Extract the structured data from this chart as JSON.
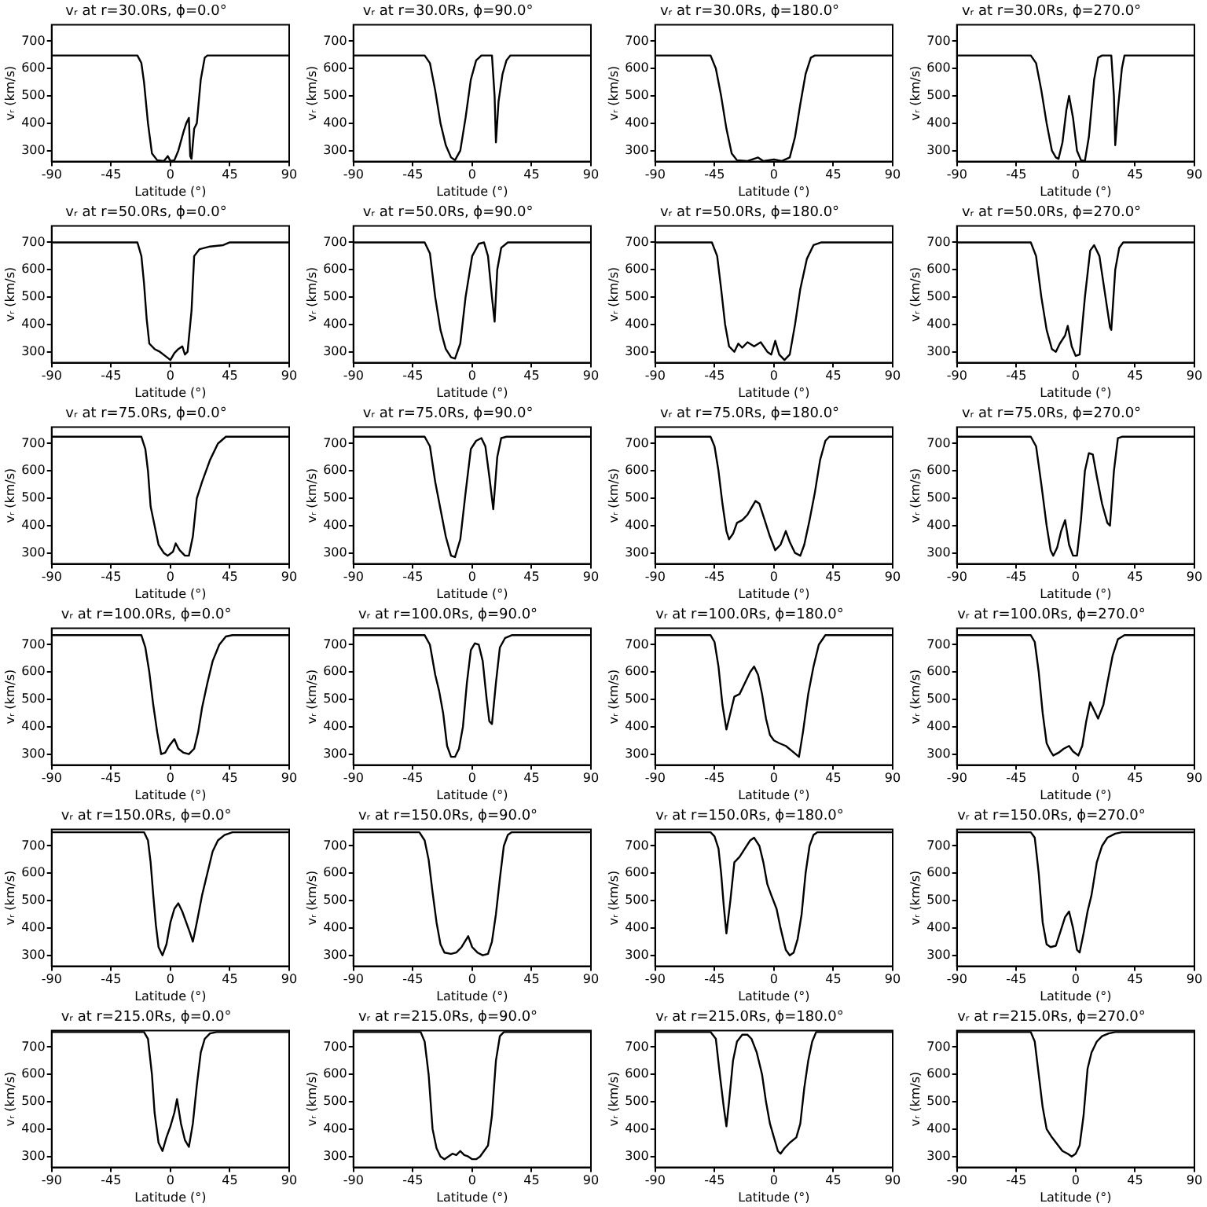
{
  "chart_data": [
    {
      "type": "line",
      "title": "vᵣ at r=30.0Rs, ϕ=0.0°",
      "xlabel": "Latitude (°)",
      "ylabel": "vᵣ (km/s)",
      "xlim": [
        -90,
        90
      ],
      "xticks": [
        -90,
        -45,
        0,
        45,
        90
      ],
      "ylim": [
        260,
        760
      ],
      "yticks": [
        300,
        400,
        500,
        600,
        700
      ],
      "grid": false,
      "marker": "none",
      "line_style": "solid",
      "series": [
        {
          "color": "#000000",
          "x": [
            -90,
            -25,
            -22,
            -20,
            -17,
            -14,
            -10,
            -5,
            -2,
            0,
            3,
            6,
            10,
            12,
            14,
            15,
            16,
            18,
            20,
            23,
            26,
            28,
            90
          ],
          "values": [
            648,
            648,
            620,
            550,
            400,
            290,
            265,
            262,
            280,
            262,
            265,
            300,
            370,
            400,
            420,
            280,
            270,
            380,
            400,
            560,
            640,
            648,
            648
          ]
        }
      ]
    },
    {
      "type": "line",
      "title": "vᵣ at r=30.0Rs, ϕ=90.0°",
      "xlabel": "Latitude (°)",
      "ylabel": "vᵣ (km/s)",
      "xlim": [
        -90,
        90
      ],
      "xticks": [
        -90,
        -45,
        0,
        45,
        90
      ],
      "ylim": [
        260,
        760
      ],
      "yticks": [
        300,
        400,
        500,
        600,
        700
      ],
      "grid": false,
      "marker": "none",
      "line_style": "solid",
      "series": [
        {
          "color": "#000000",
          "x": [
            -90,
            -36,
            -32,
            -28,
            -24,
            -20,
            -16,
            -13,
            -9,
            -5,
            -1,
            3,
            7,
            15,
            17,
            18,
            20,
            23,
            26,
            29,
            90
          ],
          "values": [
            648,
            648,
            620,
            520,
            400,
            320,
            275,
            265,
            300,
            420,
            560,
            630,
            648,
            648,
            500,
            330,
            480,
            580,
            630,
            648,
            648
          ]
        }
      ]
    },
    {
      "type": "line",
      "title": "vᵣ at r=30.0Rs, ϕ=180.0°",
      "xlabel": "Latitude (°)",
      "ylabel": "vᵣ (km/s)",
      "xlim": [
        -90,
        90
      ],
      "xticks": [
        -90,
        -45,
        0,
        45,
        90
      ],
      "ylim": [
        260,
        760
      ],
      "yticks": [
        300,
        400,
        500,
        600,
        700
      ],
      "grid": false,
      "marker": "none",
      "line_style": "solid",
      "series": [
        {
          "color": "#000000",
          "x": [
            -90,
            -48,
            -44,
            -40,
            -36,
            -32,
            -28,
            -20,
            -12,
            -8,
            0,
            6,
            12,
            16,
            20,
            24,
            28,
            31,
            90
          ],
          "values": [
            648,
            648,
            600,
            500,
            380,
            290,
            265,
            262,
            275,
            262,
            268,
            262,
            275,
            350,
            470,
            580,
            640,
            648,
            648
          ]
        }
      ]
    },
    {
      "type": "line",
      "title": "vᵣ at r=30.0Rs, ϕ=270.0°",
      "xlabel": "Latitude (°)",
      "ylabel": "vᵣ (km/s)",
      "xlim": [
        -90,
        90
      ],
      "xticks": [
        -90,
        -45,
        0,
        45,
        90
      ],
      "ylim": [
        260,
        760
      ],
      "yticks": [
        300,
        400,
        500,
        600,
        700
      ],
      "grid": false,
      "marker": "none",
      "line_style": "solid",
      "series": [
        {
          "color": "#000000",
          "x": [
            -90,
            -34,
            -30,
            -26,
            -22,
            -18,
            -15,
            -13,
            -10,
            -7,
            -5,
            -2,
            1,
            4,
            7,
            10,
            14,
            17,
            20,
            27,
            29,
            30,
            32,
            35,
            37,
            90
          ],
          "values": [
            648,
            648,
            620,
            520,
            400,
            300,
            275,
            270,
            330,
            450,
            500,
            420,
            300,
            265,
            262,
            350,
            560,
            640,
            648,
            648,
            500,
            320,
            450,
            600,
            648,
            648
          ]
        }
      ]
    },
    {
      "type": "line",
      "title": "vᵣ at r=50.0Rs, ϕ=0.0°",
      "xlabel": "Latitude (°)",
      "ylabel": "vᵣ (km/s)",
      "xlim": [
        -90,
        90
      ],
      "xticks": [
        -90,
        -45,
        0,
        45,
        90
      ],
      "ylim": [
        260,
        760
      ],
      "yticks": [
        300,
        400,
        500,
        600,
        700
      ],
      "grid": false,
      "marker": "none",
      "line_style": "solid",
      "series": [
        {
          "color": "#000000",
          "x": [
            -90,
            -25,
            -22,
            -20,
            -18,
            -16,
            -12,
            -8,
            -4,
            0,
            3,
            6,
            9,
            11,
            13,
            16,
            18,
            22,
            30,
            40,
            45,
            90
          ],
          "values": [
            700,
            700,
            650,
            550,
            420,
            330,
            310,
            300,
            285,
            270,
            295,
            310,
            320,
            290,
            300,
            450,
            650,
            675,
            685,
            690,
            700,
            700
          ]
        }
      ]
    },
    {
      "type": "line",
      "title": "vᵣ at r=50.0Rs, ϕ=90.0°",
      "xlabel": "Latitude (°)",
      "ylabel": "vᵣ (km/s)",
      "xlim": [
        -90,
        90
      ],
      "xticks": [
        -90,
        -45,
        0,
        45,
        90
      ],
      "ylim": [
        260,
        760
      ],
      "yticks": [
        300,
        400,
        500,
        600,
        700
      ],
      "grid": false,
      "marker": "none",
      "line_style": "solid",
      "series": [
        {
          "color": "#000000",
          "x": [
            -90,
            -36,
            -32,
            -28,
            -24,
            -20,
            -16,
            -13,
            -9,
            -5,
            0,
            5,
            9,
            12,
            15,
            17,
            19,
            22,
            27,
            90
          ],
          "values": [
            700,
            700,
            660,
            500,
            380,
            310,
            280,
            275,
            330,
            500,
            650,
            695,
            700,
            650,
            500,
            410,
            600,
            680,
            700,
            700
          ]
        }
      ]
    },
    {
      "type": "line",
      "title": "vᵣ at r=50.0Rs, ϕ=180.0°",
      "xlabel": "Latitude (°)",
      "ylabel": "vᵣ (km/s)",
      "xlim": [
        -90,
        90
      ],
      "xticks": [
        -90,
        -45,
        0,
        45,
        90
      ],
      "ylim": [
        260,
        760
      ],
      "yticks": [
        300,
        400,
        500,
        600,
        700
      ],
      "grid": false,
      "marker": "none",
      "line_style": "solid",
      "series": [
        {
          "color": "#000000",
          "x": [
            -90,
            -47,
            -43,
            -40,
            -37,
            -34,
            -30,
            -27,
            -24,
            -20,
            -15,
            -10,
            -5,
            -2,
            1,
            4,
            8,
            12,
            16,
            20,
            25,
            30,
            36,
            90
          ],
          "values": [
            700,
            700,
            650,
            530,
            400,
            320,
            300,
            330,
            315,
            335,
            320,
            335,
            300,
            290,
            340,
            290,
            270,
            290,
            400,
            530,
            640,
            690,
            700,
            700
          ]
        }
      ]
    },
    {
      "type": "line",
      "title": "vᵣ at r=50.0Rs, ϕ=270.0°",
      "xlabel": "Latitude (°)",
      "ylabel": "vᵣ (km/s)",
      "xlim": [
        -90,
        90
      ],
      "xticks": [
        -90,
        -45,
        0,
        45,
        90
      ],
      "ylim": [
        260,
        760
      ],
      "yticks": [
        300,
        400,
        500,
        600,
        700
      ],
      "grid": false,
      "marker": "none",
      "line_style": "solid",
      "series": [
        {
          "color": "#000000",
          "x": [
            -90,
            -34,
            -30,
            -26,
            -22,
            -18,
            -15,
            -12,
            -8,
            -6,
            -3,
            0,
            3,
            7,
            11,
            14,
            18,
            22,
            26,
            27,
            30,
            33,
            36,
            90
          ],
          "values": [
            700,
            700,
            650,
            500,
            380,
            310,
            300,
            330,
            360,
            395,
            320,
            285,
            290,
            500,
            670,
            690,
            650,
            520,
            390,
            380,
            600,
            680,
            700,
            700
          ]
        }
      ]
    },
    {
      "type": "line",
      "title": "vᵣ at r=75.0Rs, ϕ=0.0°",
      "xlabel": "Latitude (°)",
      "ylabel": "vᵣ (km/s)",
      "xlim": [
        -90,
        90
      ],
      "xticks": [
        -90,
        -45,
        0,
        45,
        90
      ],
      "ylim": [
        260,
        760
      ],
      "yticks": [
        300,
        400,
        500,
        600,
        700
      ],
      "grid": false,
      "marker": "none",
      "line_style": "solid",
      "series": [
        {
          "color": "#000000",
          "x": [
            -90,
            -22,
            -19,
            -17,
            -15,
            -12,
            -9,
            -5,
            -2,
            2,
            4,
            7,
            11,
            14,
            17,
            20,
            24,
            30,
            36,
            42,
            90
          ],
          "values": [
            725,
            725,
            680,
            600,
            470,
            400,
            330,
            300,
            290,
            305,
            335,
            310,
            290,
            290,
            360,
            500,
            560,
            640,
            700,
            725,
            725
          ]
        }
      ]
    },
    {
      "type": "line",
      "title": "vᵣ at r=75.0Rs, ϕ=90.0°",
      "xlabel": "Latitude (°)",
      "ylabel": "vᵣ (km/s)",
      "xlim": [
        -90,
        90
      ],
      "xticks": [
        -90,
        -45,
        0,
        45,
        90
      ],
      "ylim": [
        260,
        760
      ],
      "yticks": [
        300,
        400,
        500,
        600,
        700
      ],
      "grid": false,
      "marker": "none",
      "line_style": "solid",
      "series": [
        {
          "color": "#000000",
          "x": [
            -90,
            -36,
            -32,
            -28,
            -24,
            -20,
            -16,
            -13,
            -9,
            -5,
            -1,
            3,
            7,
            10,
            13,
            16,
            19,
            22,
            26,
            90
          ],
          "values": [
            725,
            725,
            690,
            560,
            460,
            360,
            290,
            285,
            350,
            520,
            680,
            710,
            720,
            690,
            580,
            460,
            650,
            720,
            725,
            725
          ]
        }
      ]
    },
    {
      "type": "line",
      "title": "vᵣ at r=75.0Rs, ϕ=180.0°",
      "xlabel": "Latitude (°)",
      "ylabel": "vᵣ (km/s)",
      "xlim": [
        -90,
        90
      ],
      "xticks": [
        -90,
        -45,
        0,
        45,
        90
      ],
      "ylim": [
        260,
        760
      ],
      "yticks": [
        300,
        400,
        500,
        600,
        700
      ],
      "grid": false,
      "marker": "none",
      "line_style": "solid",
      "series": [
        {
          "color": "#000000",
          "x": [
            -90,
            -48,
            -45,
            -42,
            -39,
            -36,
            -34,
            -31,
            -28,
            -24,
            -20,
            -14,
            -11,
            -7,
            -3,
            1,
            5,
            9,
            12,
            16,
            20,
            23,
            27,
            31,
            35,
            39,
            42,
            90
          ],
          "values": [
            725,
            725,
            690,
            600,
            480,
            380,
            350,
            370,
            410,
            420,
            440,
            490,
            480,
            420,
            360,
            310,
            330,
            380,
            340,
            300,
            290,
            330,
            420,
            520,
            640,
            710,
            725,
            725
          ]
        }
      ]
    },
    {
      "type": "line",
      "title": "vᵣ at r=75.0Rs, ϕ=270.0°",
      "xlabel": "Latitude (°)",
      "ylabel": "vᵣ (km/s)",
      "xlim": [
        -90,
        90
      ],
      "xticks": [
        -90,
        -45,
        0,
        45,
        90
      ],
      "ylim": [
        260,
        760
      ],
      "yticks": [
        300,
        400,
        500,
        600,
        700
      ],
      "grid": false,
      "marker": "none",
      "line_style": "solid",
      "series": [
        {
          "color": "#000000",
          "x": [
            -90,
            -34,
            -30,
            -26,
            -22,
            -19,
            -17,
            -14,
            -11,
            -8,
            -5,
            -2,
            1,
            4,
            7,
            10,
            13,
            16,
            20,
            24,
            26,
            29,
            32,
            35,
            90
          ],
          "values": [
            725,
            725,
            690,
            550,
            400,
            310,
            290,
            320,
            380,
            420,
            330,
            290,
            290,
            420,
            600,
            665,
            660,
            580,
            480,
            410,
            400,
            600,
            720,
            725,
            725
          ]
        }
      ]
    },
    {
      "type": "line",
      "title": "vᵣ at r=100.0Rs, ϕ=0.0°",
      "xlabel": "Latitude (°)",
      "ylabel": "vᵣ (km/s)",
      "xlim": [
        -90,
        90
      ],
      "xticks": [
        -90,
        -45,
        0,
        45,
        90
      ],
      "ylim": [
        260,
        760
      ],
      "yticks": [
        300,
        400,
        500,
        600,
        700
      ],
      "grid": false,
      "marker": "none",
      "line_style": "solid",
      "series": [
        {
          "color": "#000000",
          "x": [
            -90,
            -22,
            -19,
            -16,
            -13,
            -10,
            -7,
            -4,
            -1,
            3,
            6,
            10,
            14,
            18,
            21,
            24,
            28,
            32,
            37,
            42,
            47,
            90
          ],
          "values": [
            735,
            735,
            690,
            600,
            480,
            380,
            300,
            305,
            330,
            355,
            320,
            305,
            300,
            320,
            380,
            470,
            560,
            640,
            700,
            730,
            735,
            735
          ]
        }
      ]
    },
    {
      "type": "line",
      "title": "vᵣ at r=100.0Rs, ϕ=90.0°",
      "xlabel": "Latitude (°)",
      "ylabel": "vᵣ (km/s)",
      "xlim": [
        -90,
        90
      ],
      "xticks": [
        -90,
        -45,
        0,
        45,
        90
      ],
      "ylim": [
        260,
        760
      ],
      "yticks": [
        300,
        400,
        500,
        600,
        700
      ],
      "grid": false,
      "marker": "none",
      "line_style": "solid",
      "series": [
        {
          "color": "#000000",
          "x": [
            -90,
            -36,
            -32,
            -28,
            -25,
            -22,
            -19,
            -16,
            -13,
            -10,
            -7,
            -4,
            -1,
            2,
            5,
            8,
            11,
            13,
            15,
            18,
            21,
            25,
            30,
            90
          ],
          "values": [
            735,
            735,
            700,
            590,
            530,
            450,
            330,
            290,
            290,
            320,
            400,
            560,
            680,
            705,
            700,
            640,
            500,
            420,
            410,
            560,
            690,
            725,
            735,
            735
          ]
        }
      ]
    },
    {
      "type": "line",
      "title": "vᵣ at r=100.0Rs, ϕ=180.0°",
      "xlabel": "Latitude (°)",
      "ylabel": "vᵣ (km/s)",
      "xlim": [
        -90,
        90
      ],
      "xticks": [
        -90,
        -45,
        0,
        45,
        90
      ],
      "ylim": [
        260,
        760
      ],
      "yticks": [
        300,
        400,
        500,
        600,
        700
      ],
      "grid": false,
      "marker": "none",
      "line_style": "solid",
      "series": [
        {
          "color": "#000000",
          "x": [
            -90,
            -48,
            -45,
            -42,
            -39,
            -36,
            -33,
            -30,
            -26,
            -22,
            -18,
            -15,
            -12,
            -9,
            -6,
            -3,
            0,
            4,
            9,
            14,
            19,
            22,
            26,
            30,
            34,
            39,
            90
          ],
          "values": [
            735,
            735,
            710,
            620,
            480,
            390,
            450,
            510,
            520,
            560,
            600,
            620,
            590,
            520,
            430,
            370,
            350,
            340,
            330,
            310,
            290,
            380,
            520,
            620,
            700,
            735,
            735
          ]
        }
      ]
    },
    {
      "type": "line",
      "title": "vᵣ at r=100.0Rs, ϕ=270.0°",
      "xlabel": "Latitude (°)",
      "ylabel": "vᵣ (km/s)",
      "xlim": [
        -90,
        90
      ],
      "xticks": [
        -90,
        -45,
        0,
        45,
        90
      ],
      "ylim": [
        260,
        760
      ],
      "yticks": [
        300,
        400,
        500,
        600,
        700
      ],
      "grid": false,
      "marker": "none",
      "line_style": "solid",
      "series": [
        {
          "color": "#000000",
          "x": [
            -90,
            -34,
            -31,
            -28,
            -25,
            -22,
            -19,
            -17,
            -13,
            -9,
            -5,
            -2,
            2,
            5,
            8,
            11,
            14,
            17,
            21,
            24,
            28,
            32,
            37,
            90
          ],
          "values": [
            735,
            735,
            710,
            600,
            450,
            340,
            310,
            295,
            305,
            320,
            330,
            310,
            295,
            330,
            420,
            490,
            460,
            430,
            480,
            560,
            660,
            720,
            735,
            735
          ]
        }
      ]
    },
    {
      "type": "line",
      "title": "vᵣ at r=150.0Rs, ϕ=0.0°",
      "xlabel": "Latitude (°)",
      "ylabel": "vᵣ (km/s)",
      "xlim": [
        -90,
        90
      ],
      "xticks": [
        -90,
        -45,
        0,
        45,
        90
      ],
      "ylim": [
        260,
        760
      ],
      "yticks": [
        300,
        400,
        500,
        600,
        700
      ],
      "grid": false,
      "marker": "none",
      "line_style": "solid",
      "series": [
        {
          "color": "#000000",
          "x": [
            -90,
            -20,
            -17,
            -15,
            -13,
            -11,
            -9,
            -6,
            -3,
            0,
            3,
            6,
            9,
            12,
            15,
            17,
            20,
            24,
            28,
            32,
            36,
            41,
            47,
            90
          ],
          "values": [
            750,
            750,
            720,
            640,
            520,
            410,
            330,
            300,
            340,
            420,
            470,
            490,
            460,
            420,
            380,
            350,
            420,
            520,
            600,
            680,
            720,
            740,
            750,
            750
          ]
        }
      ]
    },
    {
      "type": "line",
      "title": "vᵣ at r=150.0Rs, ϕ=90.0°",
      "xlabel": "Latitude (°)",
      "ylabel": "vᵣ (km/s)",
      "xlim": [
        -90,
        90
      ],
      "xticks": [
        -90,
        -45,
        0,
        45,
        90
      ],
      "ylim": [
        260,
        760
      ],
      "yticks": [
        300,
        400,
        500,
        600,
        700
      ],
      "grid": false,
      "marker": "none",
      "line_style": "solid",
      "series": [
        {
          "color": "#000000",
          "x": [
            -90,
            -40,
            -36,
            -33,
            -30,
            -27,
            -24,
            -21,
            -16,
            -12,
            -8,
            -3,
            0,
            4,
            8,
            12,
            15,
            18,
            21,
            24,
            27,
            30,
            90
          ],
          "values": [
            750,
            750,
            720,
            650,
            530,
            420,
            340,
            310,
            305,
            310,
            330,
            370,
            330,
            310,
            300,
            305,
            350,
            450,
            580,
            700,
            740,
            750,
            750
          ]
        }
      ]
    },
    {
      "type": "line",
      "title": "vᵣ at r=150.0Rs, ϕ=180.0°",
      "xlabel": "Latitude (°)",
      "ylabel": "vᵣ (km/s)",
      "xlim": [
        -90,
        90
      ],
      "xticks": [
        -90,
        -45,
        0,
        45,
        90
      ],
      "ylim": [
        260,
        760
      ],
      "yticks": [
        300,
        400,
        500,
        600,
        700
      ],
      "grid": false,
      "marker": "none",
      "line_style": "solid",
      "series": [
        {
          "color": "#000000",
          "x": [
            -90,
            -48,
            -45,
            -42,
            -40,
            -38,
            -36,
            -33,
            -30,
            -26,
            -22,
            -18,
            -15,
            -11,
            -8,
            -5,
            -2,
            2,
            5,
            9,
            12,
            15,
            18,
            21,
            24,
            27,
            30,
            33,
            90
          ],
          "values": [
            750,
            750,
            735,
            690,
            600,
            480,
            380,
            500,
            640,
            660,
            690,
            720,
            730,
            700,
            640,
            560,
            520,
            470,
            400,
            320,
            300,
            310,
            360,
            450,
            600,
            700,
            740,
            750,
            750
          ]
        }
      ]
    },
    {
      "type": "line",
      "title": "vᵣ at r=150.0Rs, ϕ=270.0°",
      "xlabel": "Latitude (°)",
      "ylabel": "vᵣ (km/s)",
      "xlim": [
        -90,
        90
      ],
      "xticks": [
        -90,
        -45,
        0,
        45,
        90
      ],
      "ylim": [
        260,
        760
      ],
      "yticks": [
        300,
        400,
        500,
        600,
        700
      ],
      "grid": false,
      "marker": "none",
      "line_style": "solid",
      "series": [
        {
          "color": "#000000",
          "x": [
            -90,
            -34,
            -31,
            -28,
            -25,
            -22,
            -19,
            -15,
            -12,
            -8,
            -5,
            -2,
            1,
            3,
            6,
            9,
            12,
            16,
            20,
            24,
            30,
            35,
            90
          ],
          "values": [
            750,
            750,
            730,
            600,
            420,
            340,
            330,
            335,
            380,
            440,
            460,
            400,
            320,
            310,
            380,
            460,
            520,
            640,
            700,
            730,
            745,
            750,
            750
          ]
        }
      ]
    },
    {
      "type": "line",
      "title": "vᵣ at r=215.0Rs, ϕ=0.0°",
      "xlabel": "Latitude (°)",
      "ylabel": "vᵣ (km/s)",
      "xlim": [
        -90,
        90
      ],
      "xticks": [
        -90,
        -45,
        0,
        45,
        90
      ],
      "ylim": [
        260,
        760
      ],
      "yticks": [
        300,
        400,
        500,
        600,
        700
      ],
      "grid": false,
      "marker": "none",
      "line_style": "solid",
      "series": [
        {
          "color": "#000000",
          "x": [
            -90,
            -20,
            -17,
            -14,
            -12,
            -9,
            -6,
            -3,
            0,
            3,
            5,
            8,
            11,
            14,
            17,
            20,
            23,
            26,
            30,
            35,
            90
          ],
          "values": [
            755,
            755,
            730,
            600,
            460,
            350,
            320,
            370,
            410,
            460,
            510,
            420,
            360,
            335,
            420,
            560,
            680,
            730,
            750,
            755,
            755
          ]
        }
      ]
    },
    {
      "type": "line",
      "title": "vᵣ at r=215.0Rs, ϕ=90.0°",
      "xlabel": "Latitude (°)",
      "ylabel": "vᵣ (km/s)",
      "xlim": [
        -90,
        90
      ],
      "xticks": [
        -90,
        -45,
        0,
        45,
        90
      ],
      "ylim": [
        260,
        760
      ],
      "yticks": [
        300,
        400,
        500,
        600,
        700
      ],
      "grid": false,
      "marker": "none",
      "line_style": "solid",
      "series": [
        {
          "color": "#000000",
          "x": [
            -90,
            -39,
            -36,
            -33,
            -30,
            -27,
            -24,
            -21,
            -18,
            -15,
            -12,
            -9,
            -6,
            -3,
            0,
            3,
            6,
            9,
            12,
            15,
            18,
            21,
            24,
            90
          ],
          "values": [
            755,
            755,
            720,
            600,
            400,
            330,
            300,
            290,
            300,
            310,
            305,
            320,
            305,
            300,
            290,
            290,
            300,
            320,
            340,
            450,
            650,
            740,
            755,
            755
          ]
        }
      ]
    },
    {
      "type": "line",
      "title": "vᵣ at r=215.0Rs, ϕ=180.0°",
      "xlabel": "Latitude (°)",
      "ylabel": "vᵣ (km/s)",
      "xlim": [
        -90,
        90
      ],
      "xticks": [
        -90,
        -45,
        0,
        45,
        90
      ],
      "ylim": [
        260,
        760
      ],
      "yticks": [
        300,
        400,
        500,
        600,
        700
      ],
      "grid": false,
      "marker": "none",
      "line_style": "solid",
      "series": [
        {
          "color": "#000000",
          "x": [
            -90,
            -48,
            -44,
            -41,
            -38,
            -36,
            -34,
            -31,
            -28,
            -24,
            -20,
            -17,
            -13,
            -9,
            -6,
            -3,
            0,
            3,
            5,
            8,
            12,
            17,
            20,
            23,
            26,
            29,
            32,
            90
          ],
          "values": [
            755,
            755,
            730,
            600,
            480,
            410,
            500,
            650,
            720,
            745,
            745,
            730,
            680,
            600,
            500,
            420,
            370,
            320,
            310,
            330,
            350,
            370,
            420,
            550,
            650,
            720,
            755,
            755
          ]
        }
      ]
    },
    {
      "type": "line",
      "title": "vᵣ at r=215.0Rs, ϕ=270.0°",
      "xlabel": "Latitude (°)",
      "ylabel": "vᵣ (km/s)",
      "xlim": [
        -90,
        90
      ],
      "xticks": [
        -90,
        -45,
        0,
        45,
        90
      ],
      "ylim": [
        260,
        760
      ],
      "yticks": [
        300,
        400,
        500,
        600,
        700
      ],
      "grid": false,
      "marker": "none",
      "line_style": "solid",
      "series": [
        {
          "color": "#000000",
          "x": [
            -90,
            -34,
            -31,
            -28,
            -25,
            -22,
            -18,
            -14,
            -10,
            -6,
            -3,
            0,
            3,
            6,
            9,
            12,
            16,
            20,
            25,
            30,
            90
          ],
          "values": [
            755,
            755,
            720,
            600,
            480,
            400,
            370,
            345,
            320,
            310,
            300,
            310,
            340,
            450,
            620,
            680,
            720,
            740,
            750,
            755,
            755
          ]
        }
      ]
    }
  ]
}
